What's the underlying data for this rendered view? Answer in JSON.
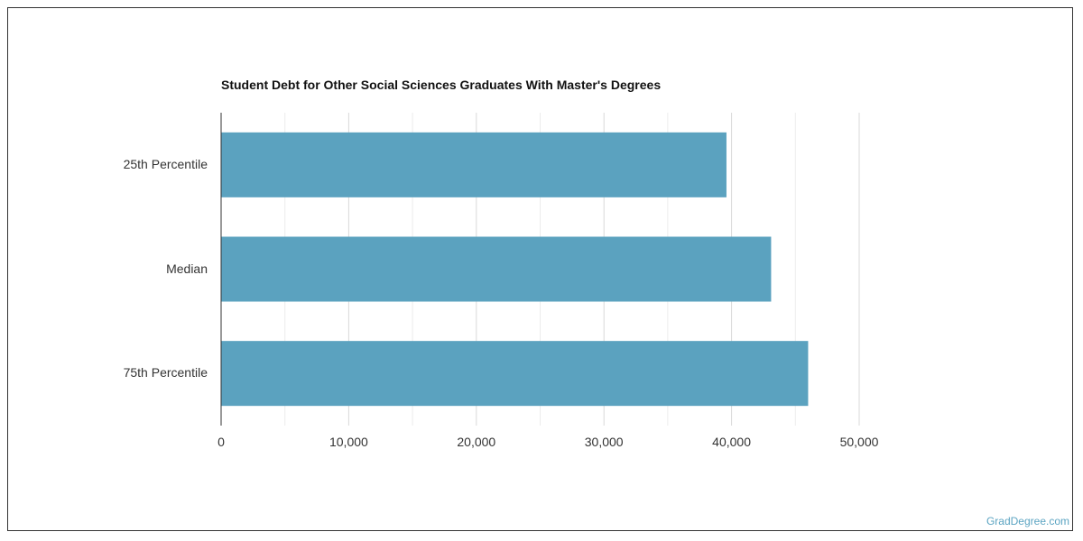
{
  "chart_data": {
    "type": "bar",
    "orientation": "horizontal",
    "title": "Student Debt for Other Social Sciences Graduates With Master's Degrees",
    "categories": [
      "25th Percentile",
      "Median",
      "75th Percentile"
    ],
    "values": [
      39600,
      43100,
      46000
    ],
    "xlim": [
      0,
      50000
    ],
    "xticks": [
      "0",
      "10,000",
      "20,000",
      "30,000",
      "40,000",
      "50,000"
    ],
    "xlabel": "",
    "ylabel": "",
    "grid": true,
    "bar_color": "#5ba2bf"
  },
  "footer": {
    "credit": "GradDegree.com"
  }
}
